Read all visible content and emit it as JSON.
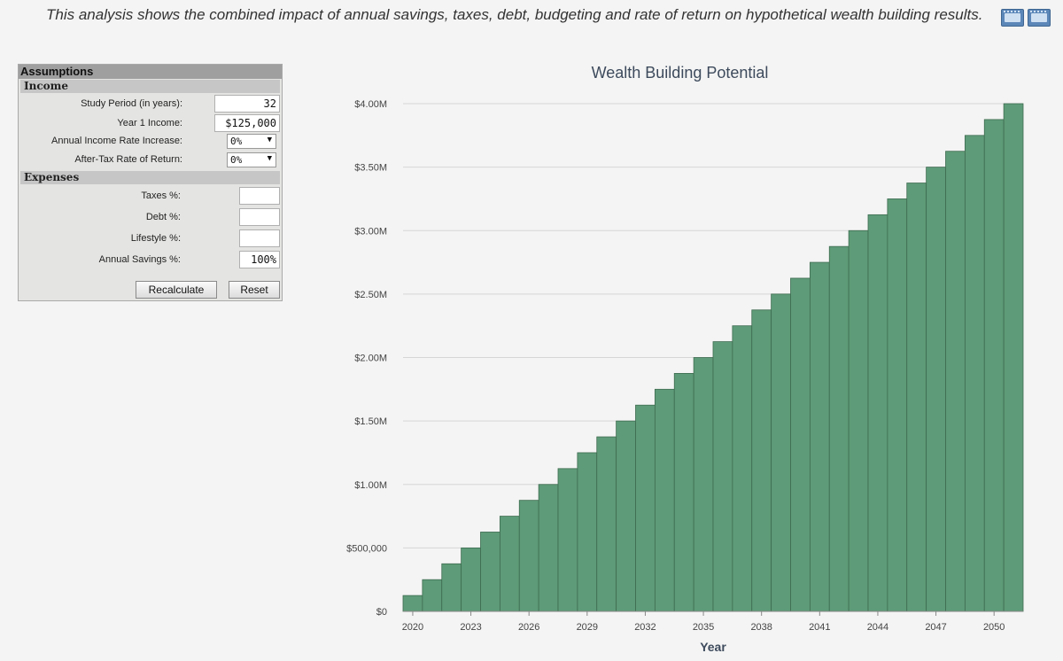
{
  "intro": "This analysis shows the combined impact of annual savings, taxes, debt, budgeting and rate of return on hypothetical wealth building results.",
  "icons": [
    "film-icon",
    "film-icon"
  ],
  "assumptions": {
    "title": "Assumptions",
    "income": {
      "header": "Income",
      "study_period_label": "Study Period (in years):",
      "study_period_value": "32",
      "year1_income_label": "Year 1 Income:",
      "year1_income_value": "$125,000",
      "income_rate_label": "Annual Income Rate Increase:",
      "income_rate_value": "0%",
      "return_rate_label": "After-Tax Rate of Return:",
      "return_rate_value": "0%"
    },
    "expenses": {
      "header": "Expenses",
      "taxes_label": "Taxes %:",
      "taxes_value": "",
      "debt_label": "Debt %:",
      "debt_value": "",
      "lifestyle_label": "Lifestyle %:",
      "lifestyle_value": "",
      "savings_label": "Annual Savings %:",
      "savings_value": "100%"
    },
    "recalculate_label": "Recalculate",
    "reset_label": "Reset"
  },
  "chart_data": {
    "type": "bar",
    "title": "Wealth Building Potential",
    "xlabel": "Year",
    "ylabel": "",
    "ylim": [
      0,
      4000000
    ],
    "yticks": [
      0,
      500000,
      1000000,
      1500000,
      2000000,
      2500000,
      3000000,
      3500000,
      4000000
    ],
    "ytick_labels": [
      "$0",
      "$500,000",
      "$1.00M",
      "$1.50M",
      "$2.00M",
      "$2.50M",
      "$3.00M",
      "$3.50M",
      "$4.00M"
    ],
    "categories": [
      2020,
      2021,
      2022,
      2023,
      2024,
      2025,
      2026,
      2027,
      2028,
      2029,
      2030,
      2031,
      2032,
      2033,
      2034,
      2035,
      2036,
      2037,
      2038,
      2039,
      2040,
      2041,
      2042,
      2043,
      2044,
      2045,
      2046,
      2047,
      2048,
      2049,
      2050,
      2051
    ],
    "xtick_labels": [
      "2020",
      "2023",
      "2026",
      "2029",
      "2032",
      "2035",
      "2038",
      "2041",
      "2044",
      "2047",
      "2050"
    ],
    "xtick_years": [
      2020,
      2023,
      2026,
      2029,
      2032,
      2035,
      2038,
      2041,
      2044,
      2047,
      2050
    ],
    "values": [
      125000,
      250000,
      375000,
      500000,
      625000,
      750000,
      875000,
      1000000,
      1125000,
      1250000,
      1375000,
      1500000,
      1625000,
      1750000,
      1875000,
      2000000,
      2125000,
      2250000,
      2375000,
      2500000,
      2625000,
      2750000,
      2875000,
      3000000,
      3125000,
      3250000,
      3375000,
      3500000,
      3625000,
      3750000,
      3875000,
      4000000
    ],
    "bar_color": "#5e9b78",
    "grid": true,
    "legend": "none"
  }
}
